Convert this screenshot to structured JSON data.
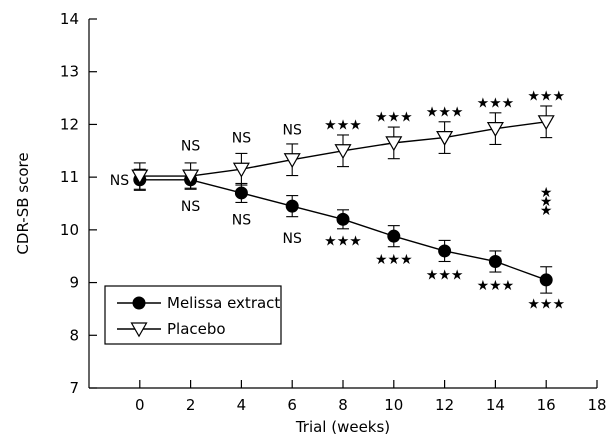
{
  "chart_data": {
    "type": "line",
    "xlabel": "Trial (weeks)",
    "ylabel": "CDR-SB score",
    "xlim": [
      -2,
      18
    ],
    "ylim": [
      7,
      14
    ],
    "x_ticks": [
      0,
      2,
      4,
      6,
      8,
      10,
      12,
      14,
      16,
      18
    ],
    "y_ticks": [
      7,
      8,
      9,
      10,
      11,
      12,
      13,
      14
    ],
    "legend_position": "bottom-left",
    "series": [
      {
        "name": "Melissa extract",
        "marker": "filled-circle",
        "color": "#000000",
        "x": [
          0,
          2,
          4,
          6,
          8,
          10,
          12,
          14,
          16
        ],
        "y": [
          10.95,
          10.95,
          10.7,
          10.45,
          10.2,
          9.88,
          9.6,
          9.4,
          9.05
        ],
        "error": [
          0.2,
          0.16,
          0.18,
          0.2,
          0.18,
          0.2,
          0.2,
          0.2,
          0.25
        ]
      },
      {
        "name": "Placebo",
        "marker": "open-triangle-down",
        "color": "#000000",
        "x": [
          0,
          2,
          4,
          6,
          8,
          10,
          12,
          14,
          16
        ],
        "y": [
          11.02,
          11.02,
          11.15,
          11.33,
          11.5,
          11.65,
          11.75,
          11.92,
          12.05
        ],
        "error": [
          0.25,
          0.25,
          0.3,
          0.3,
          0.3,
          0.3,
          0.3,
          0.3,
          0.3
        ]
      }
    ],
    "annotations": [
      {
        "text": "NS",
        "x": -0.8,
        "y": 10.95
      },
      {
        "text": "NS",
        "x": 2,
        "y": 11.6
      },
      {
        "text": "NS",
        "x": 4,
        "y": 11.75
      },
      {
        "text": "NS",
        "x": 6,
        "y": 11.9
      },
      {
        "text": "★★★",
        "x": 8,
        "y": 12.0
      },
      {
        "text": "★★★",
        "x": 10,
        "y": 12.15
      },
      {
        "text": "★★★",
        "x": 12,
        "y": 12.25
      },
      {
        "text": "★★★",
        "x": 14,
        "y": 12.42
      },
      {
        "text": "★★★",
        "x": 16,
        "y": 12.55
      },
      {
        "text": "NS",
        "x": 2,
        "y": 10.45
      },
      {
        "text": "NS",
        "x": 4,
        "y": 10.2
      },
      {
        "text": "NS",
        "x": 6,
        "y": 9.85
      },
      {
        "text": "★★★",
        "x": 8,
        "y": 9.8
      },
      {
        "text": "★★★",
        "x": 10,
        "y": 9.45
      },
      {
        "text": "★★★",
        "x": 12,
        "y": 9.15
      },
      {
        "text": "★★★",
        "x": 14,
        "y": 8.95
      },
      {
        "text": "★★★",
        "x": 16,
        "y": 8.6
      },
      {
        "text": "★",
        "x": 16,
        "y": 10.72
      },
      {
        "text": "★",
        "x": 16,
        "y": 10.55
      },
      {
        "text": "★",
        "x": 16,
        "y": 10.38
      }
    ]
  }
}
